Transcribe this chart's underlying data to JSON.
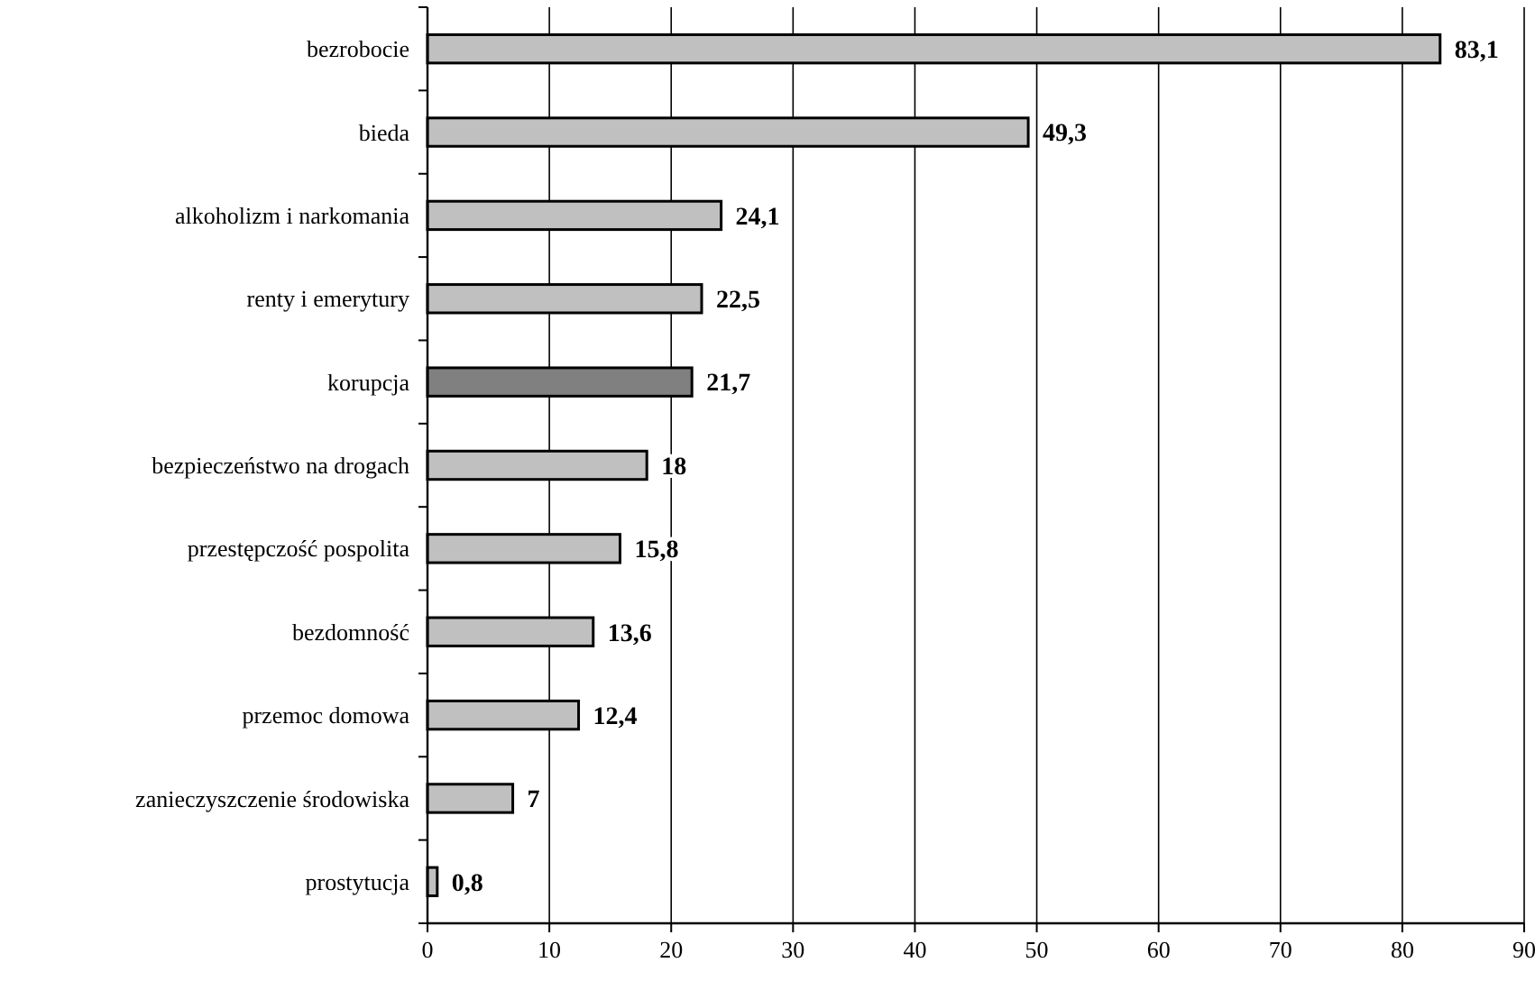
{
  "chart_data": {
    "type": "bar",
    "orientation": "horizontal",
    "categories": [
      "bezrobocie",
      "bieda",
      "alkoholizm i narkomania",
      "renty i emerytury",
      "korupcja",
      "bezpieczeństwo na drogach",
      "przestępczość pospolita",
      "bezdomność",
      "przemoc domowa",
      "zanieczyszczenie środowiska",
      "prostytucja"
    ],
    "values": [
      83.1,
      49.3,
      24.1,
      22.5,
      21.7,
      18,
      15.8,
      13.6,
      12.4,
      7,
      0.8
    ],
    "colors": [
      "#c0c0c0",
      "#c0c0c0",
      "#c0c0c0",
      "#c0c0c0",
      "#808080",
      "#c0c0c0",
      "#c0c0c0",
      "#c0c0c0",
      "#c0c0c0",
      "#c0c0c0",
      "#c0c0c0"
    ],
    "value_labels": [
      "83,1",
      "49,3",
      "24,1",
      "22,5",
      "21,7",
      "18",
      "15,8",
      "13,6",
      "12,4",
      "7",
      "0,8"
    ],
    "xlim": [
      0,
      90
    ],
    "xticks": [
      0,
      10,
      20,
      30,
      40,
      50,
      60,
      70,
      80,
      90
    ],
    "grid": "x"
  }
}
